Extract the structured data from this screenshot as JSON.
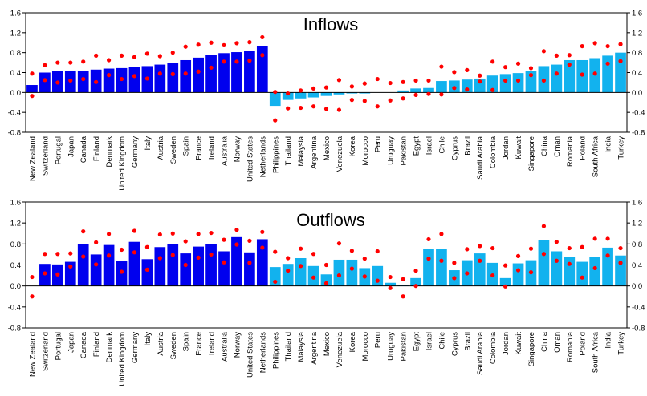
{
  "chart_data": [
    {
      "type": "bar",
      "title": "Inflows",
      "ylim": [
        -0.8,
        1.6
      ],
      "yticks": [
        "-0.8",
        "-0.4",
        "0.0",
        "0.4",
        "0.8",
        "1.2",
        "1.6"
      ],
      "grid": false,
      "categories": [
        "New Zealand",
        "Switzerland",
        "Portugal",
        "Japan",
        "Canada",
        "Finland",
        "Denmark",
        "United Kingdom",
        "Germany",
        "Italy",
        "Austria",
        "Sweden",
        "Spain",
        "France",
        "Ireland",
        "Australia",
        "Norway",
        "United States",
        "Netherlands",
        "Philippines",
        "Thailand",
        "Malaysia",
        "Argentina",
        "Mexico",
        "Venezuela",
        "Korea",
        "Morocco",
        "Peru",
        "Uruguay",
        "Pakistan",
        "Egypt",
        "Israel",
        "Chile",
        "Cyprus",
        "Brazil",
        "Saudi Arabia",
        "Colombia",
        "Jordan",
        "Kuwait",
        "Singapore",
        "China",
        "Oman",
        "Romania",
        "Poland",
        "South Africa",
        "India",
        "Turkey"
      ],
      "group_sizes": [
        19,
        28
      ],
      "group_colors": [
        "#0000ee",
        "#12b2ee"
      ],
      "marker_color": "#ff0000",
      "values": [
        0.15,
        0.4,
        0.43,
        0.43,
        0.44,
        0.46,
        0.48,
        0.49,
        0.51,
        0.53,
        0.56,
        0.59,
        0.65,
        0.7,
        0.76,
        0.79,
        0.81,
        0.83,
        0.93,
        -0.27,
        -0.15,
        -0.12,
        -0.1,
        -0.07,
        -0.04,
        -0.02,
        -0.02,
        0.0,
        0.0,
        0.04,
        0.08,
        0.09,
        0.23,
        0.24,
        0.26,
        0.28,
        0.34,
        0.37,
        0.39,
        0.43,
        0.53,
        0.56,
        0.65,
        0.65,
        0.69,
        0.74,
        0.8
      ],
      "upper": [
        0.38,
        0.55,
        0.6,
        0.6,
        0.62,
        0.74,
        0.65,
        0.74,
        0.71,
        0.78,
        0.73,
        0.8,
        0.92,
        0.96,
        1.0,
        0.95,
        0.99,
        1.01,
        1.11,
        0.01,
        -0.02,
        0.04,
        0.08,
        0.1,
        0.25,
        0.12,
        0.18,
        0.27,
        0.19,
        0.21,
        0.24,
        0.24,
        0.52,
        0.41,
        0.45,
        0.34,
        0.62,
        0.51,
        0.58,
        0.49,
        0.83,
        0.74,
        0.75,
        0.93,
        0.99,
        0.93,
        0.97
      ],
      "lower": [
        -0.07,
        0.25,
        0.2,
        0.24,
        0.27,
        0.21,
        0.35,
        0.27,
        0.33,
        0.28,
        0.38,
        0.37,
        0.38,
        0.42,
        0.5,
        0.62,
        0.62,
        0.64,
        0.75,
        -0.56,
        -0.32,
        -0.31,
        -0.28,
        -0.33,
        -0.35,
        -0.15,
        -0.17,
        -0.28,
        -0.16,
        -0.12,
        -0.05,
        -0.03,
        -0.04,
        0.09,
        0.06,
        0.22,
        0.05,
        0.24,
        0.24,
        0.35,
        0.24,
        0.38,
        0.56,
        0.36,
        0.38,
        0.58,
        0.63
      ]
    },
    {
      "type": "bar",
      "title": "Outflows",
      "ylim": [
        -0.8,
        1.6
      ],
      "yticks": [
        "-0.8",
        "-0.4",
        "0.0",
        "0.4",
        "0.8",
        "1.2",
        "1.6"
      ],
      "grid": false,
      "categories": [
        "New Zealand",
        "Switzerland",
        "Portugal",
        "Japan",
        "Canada",
        "Finland",
        "Denmark",
        "United Kingdom",
        "Germany",
        "Italy",
        "Austria",
        "Sweden",
        "Spain",
        "France",
        "Ireland",
        "Australia",
        "Norway",
        "United States",
        "Netherlands",
        "Philippines",
        "Thailand",
        "Malaysia",
        "Argentina",
        "Mexico",
        "Venezuela",
        "Korea",
        "Morocco",
        "Peru",
        "Uruguay",
        "Pakistan",
        "Egypt",
        "Israel",
        "Chile",
        "Cyprus",
        "Brazil",
        "Saudi Arabia",
        "Colombia",
        "Jordan",
        "Kuwait",
        "Singapore",
        "China",
        "Oman",
        "Romania",
        "Poland",
        "South Africa",
        "India",
        "Turkey"
      ],
      "group_sizes": [
        19,
        28
      ],
      "group_colors": [
        "#0000ee",
        "#12b2ee"
      ],
      "marker_color": "#ff0000",
      "values": [
        0.0,
        0.42,
        0.41,
        0.46,
        0.8,
        0.6,
        0.78,
        0.47,
        0.84,
        0.51,
        0.74,
        0.8,
        0.62,
        0.75,
        0.79,
        0.66,
        0.93,
        0.64,
        0.89,
        0.36,
        0.42,
        0.53,
        0.38,
        0.22,
        0.5,
        0.5,
        0.34,
        0.38,
        0.06,
        0.02,
        0.15,
        0.7,
        0.71,
        0.3,
        0.49,
        0.62,
        0.44,
        0.15,
        0.43,
        0.49,
        0.88,
        0.66,
        0.55,
        0.46,
        0.55,
        0.73,
        0.58
      ],
      "upper": [
        0.17,
        0.61,
        0.61,
        0.62,
        1.04,
        0.83,
        0.99,
        0.69,
        1.05,
        0.74,
        0.98,
        1.0,
        0.85,
        0.99,
        1.01,
        0.88,
        1.07,
        0.86,
        1.03,
        0.65,
        0.53,
        0.71,
        0.61,
        0.4,
        0.81,
        0.67,
        0.52,
        0.66,
        0.17,
        0.13,
        0.29,
        0.89,
        0.99,
        0.44,
        0.7,
        0.76,
        0.72,
        0.39,
        0.57,
        0.71,
        1.14,
        0.84,
        0.72,
        0.74,
        0.9,
        0.9,
        0.72
      ],
      "lower": [
        -0.2,
        0.24,
        0.22,
        0.37,
        0.56,
        0.41,
        0.58,
        0.27,
        0.64,
        0.31,
        0.53,
        0.59,
        0.4,
        0.54,
        0.6,
        0.45,
        0.79,
        0.44,
        0.73,
        0.08,
        0.29,
        0.38,
        0.16,
        0.05,
        0.2,
        0.33,
        0.18,
        0.1,
        -0.04,
        -0.2,
        0.0,
        0.52,
        0.48,
        0.15,
        0.24,
        0.48,
        0.2,
        -0.01,
        0.3,
        0.26,
        0.61,
        0.48,
        0.42,
        0.16,
        0.34,
        0.58,
        0.44
      ]
    }
  ]
}
